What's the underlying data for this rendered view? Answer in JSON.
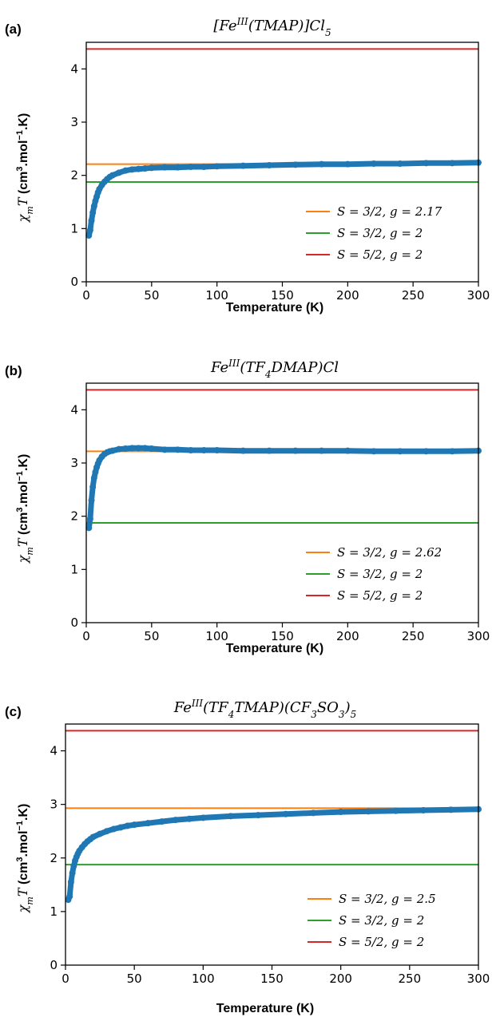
{
  "chart_data": [
    {
      "type": "line",
      "panel_label": "(a)",
      "title": "[Fe^III(TMAP)]Cl5",
      "xlabel": "Temperature (K)",
      "ylabel": "χmT (cm3.mol-1.K)",
      "xlim": [
        0,
        300
      ],
      "ylim": [
        0,
        4.5
      ],
      "xticks": [
        0,
        50,
        100,
        150,
        200,
        250,
        300
      ],
      "yticks": [
        0,
        1,
        2,
        3,
        4
      ],
      "grid": false,
      "legend_position": "lower-right",
      "series": [
        {
          "name": "",
          "kind": "scatter",
          "color": "#1f77b4",
          "x": [
            2,
            3,
            4,
            5,
            6,
            7,
            8,
            9,
            10,
            12,
            14,
            16,
            18,
            20,
            25,
            30,
            35,
            40,
            45,
            50,
            60,
            70,
            80,
            90,
            100,
            120,
            140,
            160,
            180,
            200,
            220,
            240,
            260,
            280,
            300
          ],
          "y": [
            0.87,
            0.97,
            1.15,
            1.3,
            1.42,
            1.52,
            1.6,
            1.68,
            1.74,
            1.82,
            1.88,
            1.93,
            1.97,
            2.0,
            2.05,
            2.09,
            2.11,
            2.12,
            2.13,
            2.14,
            2.15,
            2.15,
            2.16,
            2.16,
            2.17,
            2.18,
            2.19,
            2.2,
            2.21,
            2.21,
            2.22,
            2.22,
            2.23,
            2.23,
            2.24
          ]
        },
        {
          "name": "S = 3/2, g = 2.17",
          "kind": "hline",
          "y": 2.21,
          "color": "#ff7f0e"
        },
        {
          "name": "S = 3/2, g = 2",
          "kind": "hline",
          "y": 1.875,
          "color": "#2ca02c"
        },
        {
          "name": "S = 5/2, g = 2",
          "kind": "hline",
          "y": 4.375,
          "color": "#d62728"
        }
      ]
    },
    {
      "type": "line",
      "panel_label": "(b)",
      "title": "Fe^III(TF4DMAP)Cl",
      "xlabel": "Temperature (K)",
      "ylabel": "χmT (cm3.mol-1.K)",
      "xlim": [
        0,
        300
      ],
      "ylim": [
        0,
        4.5
      ],
      "xticks": [
        0,
        50,
        100,
        150,
        200,
        250,
        300
      ],
      "yticks": [
        0,
        1,
        2,
        3,
        4
      ],
      "grid": false,
      "legend_position": "lower-right",
      "series": [
        {
          "name": "",
          "kind": "scatter",
          "color": "#1f77b4",
          "x": [
            2,
            3,
            4,
            5,
            6,
            7,
            8,
            9,
            10,
            12,
            14,
            16,
            18,
            20,
            25,
            30,
            35,
            40,
            45,
            50,
            60,
            70,
            80,
            90,
            100,
            120,
            140,
            160,
            180,
            200,
            220,
            240,
            260,
            280,
            300
          ],
          "y": [
            1.78,
            1.95,
            2.3,
            2.55,
            2.72,
            2.83,
            2.92,
            2.99,
            3.05,
            3.12,
            3.17,
            3.2,
            3.22,
            3.23,
            3.26,
            3.27,
            3.28,
            3.28,
            3.28,
            3.27,
            3.25,
            3.25,
            3.24,
            3.24,
            3.24,
            3.23,
            3.23,
            3.23,
            3.23,
            3.23,
            3.22,
            3.22,
            3.22,
            3.22,
            3.23
          ]
        },
        {
          "name": "S = 3/2, g = 2.62",
          "kind": "hline",
          "y": 3.22,
          "color": "#ff7f0e"
        },
        {
          "name": "S = 3/2, g = 2",
          "kind": "hline",
          "y": 1.875,
          "color": "#2ca02c"
        },
        {
          "name": "S = 5/2, g = 2",
          "kind": "hline",
          "y": 4.375,
          "color": "#d62728"
        }
      ]
    },
    {
      "type": "line",
      "panel_label": "(c)",
      "title": "Fe^III(TF4TMAP)(CF3SO3)5",
      "xlabel": "Temperature (K)",
      "ylabel": "χmT (cm3.mol-1.K)",
      "xlim": [
        0,
        300
      ],
      "ylim": [
        0,
        4.5
      ],
      "xticks": [
        0,
        50,
        100,
        150,
        200,
        250,
        300
      ],
      "yticks": [
        0,
        1,
        2,
        3,
        4
      ],
      "grid": false,
      "legend_position": "lower-right",
      "series": [
        {
          "name": "",
          "kind": "scatter",
          "color": "#1f77b4",
          "x": [
            2,
            3,
            4,
            5,
            6,
            7,
            8,
            9,
            10,
            12,
            14,
            16,
            18,
            20,
            25,
            30,
            35,
            40,
            45,
            50,
            60,
            70,
            80,
            90,
            100,
            120,
            140,
            160,
            180,
            200,
            220,
            240,
            260,
            280,
            300
          ],
          "y": [
            1.22,
            1.28,
            1.55,
            1.72,
            1.85,
            1.95,
            2.02,
            2.08,
            2.13,
            2.2,
            2.26,
            2.31,
            2.35,
            2.39,
            2.45,
            2.5,
            2.54,
            2.57,
            2.6,
            2.62,
            2.65,
            2.68,
            2.71,
            2.73,
            2.75,
            2.78,
            2.8,
            2.82,
            2.84,
            2.86,
            2.87,
            2.88,
            2.89,
            2.9,
            2.91
          ]
        },
        {
          "name": "S = 3/2, g = 2.5",
          "kind": "hline",
          "y": 2.93,
          "color": "#ff7f0e"
        },
        {
          "name": "S = 3/2, g = 2",
          "kind": "hline",
          "y": 1.875,
          "color": "#2ca02c"
        },
        {
          "name": "S = 5/2, g = 2",
          "kind": "hline",
          "y": 4.375,
          "color": "#d62728"
        }
      ]
    }
  ]
}
